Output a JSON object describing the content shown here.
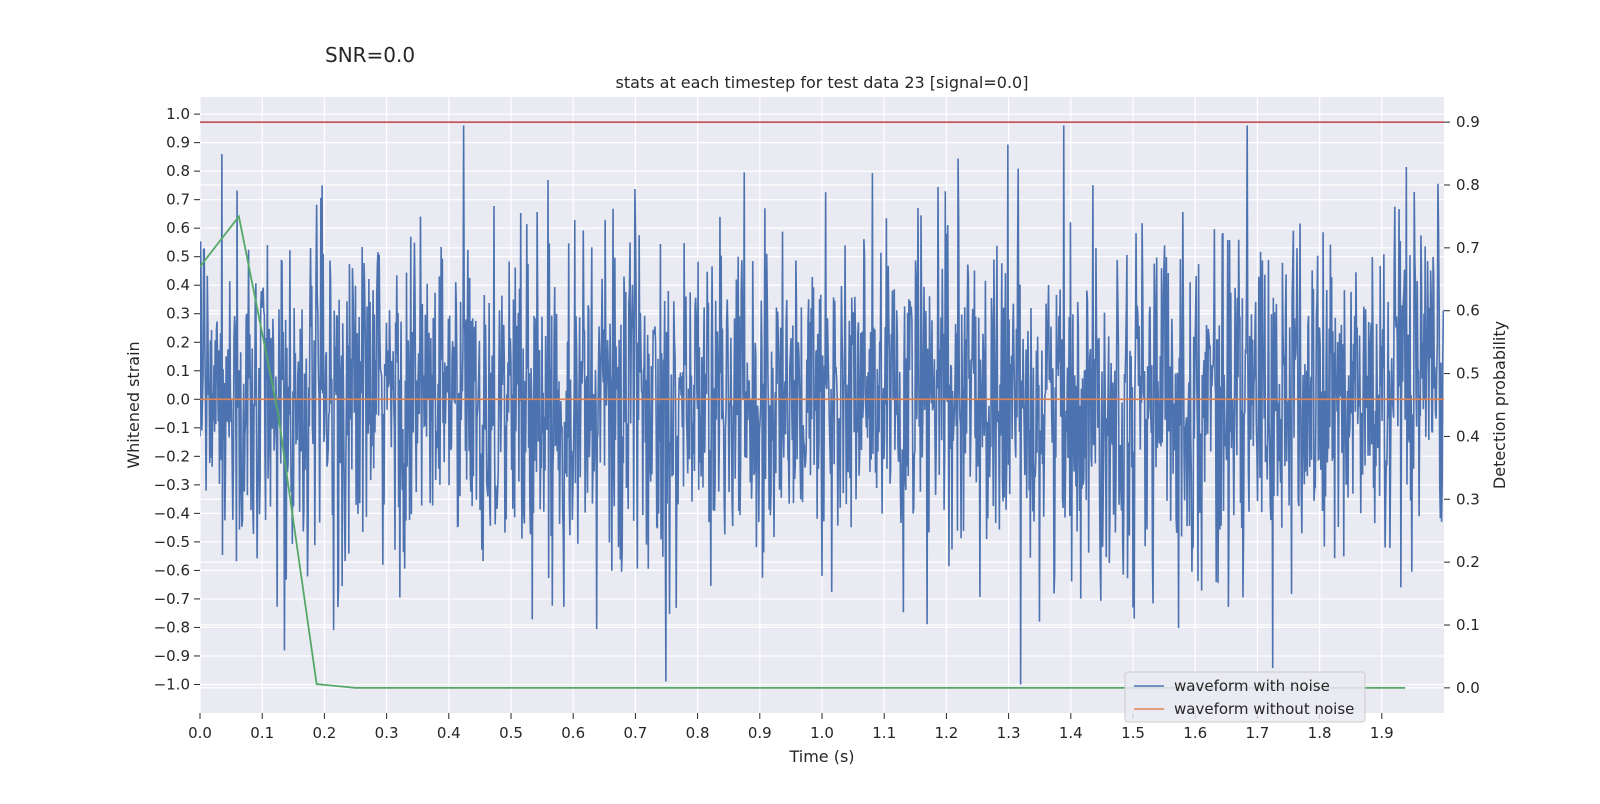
{
  "suptitle": "SNR=0.0",
  "chart_data": {
    "type": "line",
    "title": "stats at each timestep for test data 23 [signal=0.0]",
    "xlabel": "Time (s)",
    "ylabel": "Whitened strain",
    "y2label": "Detection probability",
    "xlim": [
      0.0,
      2.0
    ],
    "ylim": [
      -1.1,
      1.06
    ],
    "y2lim": [
      -0.04,
      0.94
    ],
    "xticks": [
      "0.0",
      "0.1",
      "0.2",
      "0.3",
      "0.4",
      "0.5",
      "0.6",
      "0.7",
      "0.8",
      "0.9",
      "1.0",
      "1.1",
      "1.2",
      "1.3",
      "1.4",
      "1.5",
      "1.6",
      "1.7",
      "1.8",
      "1.9"
    ],
    "yticks": [
      "1.0",
      "0.9",
      "0.8",
      "0.7",
      "0.6",
      "0.5",
      "0.4",
      "0.3",
      "0.2",
      "0.1",
      "0.0",
      "-0.1",
      "-0.2",
      "-0.3",
      "-0.4",
      "-0.5",
      "-0.6",
      "-0.7",
      "-0.8",
      "-0.9",
      "-1.0"
    ],
    "y2ticks": [
      "0.9",
      "0.8",
      "0.7",
      "0.6",
      "0.5",
      "0.4",
      "0.3",
      "0.2",
      "0.1",
      "0.0"
    ],
    "grid": true,
    "legend_position": "lower-right",
    "series": [
      {
        "name": "waveform with noise",
        "axis": "left",
        "color": "#4c72b0",
        "noise_summary": {
          "samples": 2048,
          "range": [
            -1.0,
            0.96
          ],
          "std": 0.3
        }
      },
      {
        "name": "waveform without noise",
        "axis": "left",
        "color": "#dd8452",
        "x": [
          0.0,
          2.0
        ],
        "y": [
          0.0,
          0.0
        ]
      },
      {
        "axis": "right",
        "color": "#55a868",
        "x": [
          0.0,
          0.0625,
          0.125,
          0.1875,
          0.25,
          0.3125,
          0.375,
          0.4375,
          0.5,
          0.5625,
          0.625,
          0.6875,
          0.75,
          0.8125,
          0.875,
          0.9375,
          1.0,
          1.0625,
          1.125,
          1.1875,
          1.25,
          1.3125,
          1.375,
          1.4375,
          1.5,
          1.5625,
          1.625,
          1.6875,
          1.75,
          1.8125,
          1.875,
          1.9375
        ],
        "y": [
          0.67,
          0.75,
          0.44,
          0.006,
          0.0,
          0.0,
          0.0,
          0.0,
          0.0,
          0.0,
          0.0,
          0.0,
          0.0,
          0.0,
          0.0,
          0.0,
          0.0,
          0.0,
          0.0,
          0.0,
          0.0,
          0.0,
          0.0,
          0.0,
          0.0,
          0.0,
          0.0,
          0.0,
          0.0,
          0.0,
          0.0,
          0.0
        ]
      },
      {
        "axis": "right",
        "color": "#c44e52",
        "x": [
          0.0,
          2.0
        ],
        "y": [
          0.9,
          0.9
        ]
      }
    ]
  }
}
